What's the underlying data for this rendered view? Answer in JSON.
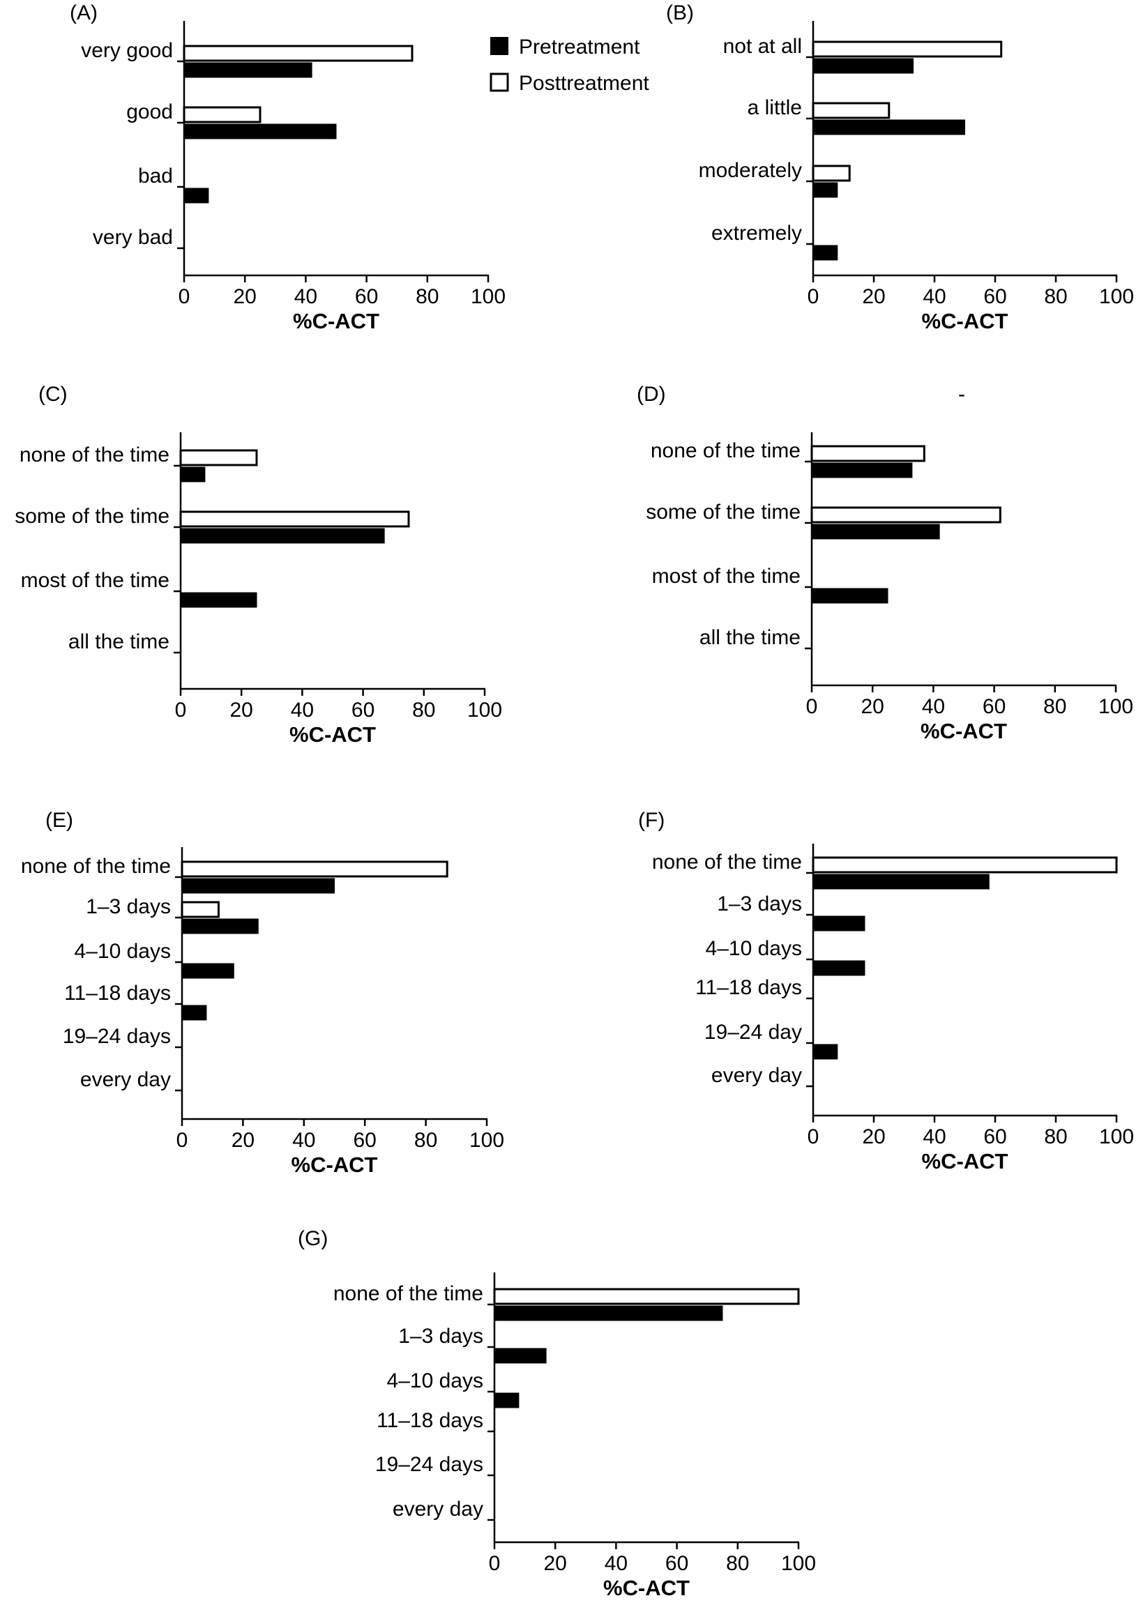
{
  "legend": {
    "pre_label": "Pretreatment",
    "post_label": "Posttreatment",
    "pre_color": "#000000",
    "post_color": "#ffffff"
  },
  "chart_data": [
    {
      "type": "bar",
      "panel": "(A)",
      "categories": [
        "very good",
        "good",
        "bad",
        "very bad"
      ],
      "series": [
        {
          "name": "Posttreatment",
          "values": [
            75,
            25,
            0,
            0
          ]
        },
        {
          "name": "Pretreatment",
          "values": [
            42,
            50,
            8,
            0
          ]
        }
      ],
      "xlabel": "%C-ACT",
      "xlim": [
        0,
        100
      ],
      "xticks": [
        "0",
        "20",
        "40",
        "60",
        "80",
        "100"
      ],
      "legend_position": "top-right"
    },
    {
      "type": "bar",
      "panel": "(B)",
      "categories": [
        "not at all",
        "a little",
        "moderately",
        "extremely"
      ],
      "series": [
        {
          "name": "Posttreatment",
          "values": [
            62,
            25,
            12,
            0
          ]
        },
        {
          "name": "Pretreatment",
          "values": [
            33,
            50,
            8,
            8
          ]
        }
      ],
      "xlabel": "%C-ACT",
      "xlim": [
        0,
        100
      ],
      "xticks": [
        "0",
        "20",
        "40",
        "60",
        "80",
        "100"
      ]
    },
    {
      "type": "bar",
      "panel": "(C)",
      "categories": [
        "none of the time",
        "some of the time",
        "most of the time",
        "all the time"
      ],
      "series": [
        {
          "name": "Posttreatment",
          "values": [
            25,
            75,
            0,
            0
          ]
        },
        {
          "name": "Pretreatment",
          "values": [
            8,
            67,
            25,
            0
          ]
        }
      ],
      "xlabel": "%C-ACT",
      "xlim": [
        0,
        100
      ],
      "xticks": [
        "0",
        "20",
        "40",
        "60",
        "80",
        "100"
      ]
    },
    {
      "type": "bar",
      "panel": "(D)",
      "categories": [
        "none of the time",
        "some of the time",
        "most of the time",
        "all the time"
      ],
      "series": [
        {
          "name": "Posttreatment",
          "values": [
            37,
            62,
            0,
            0
          ]
        },
        {
          "name": "Pretreatment",
          "values": [
            33,
            42,
            25,
            0
          ]
        }
      ],
      "xlabel": "%C-ACT",
      "xlim": [
        0,
        100
      ],
      "xticks": [
        "0",
        "20",
        "40",
        "60",
        "80",
        "100"
      ]
    },
    {
      "type": "bar",
      "panel": "(E)",
      "categories": [
        "none of the time",
        "1–3 days",
        "4–10 days",
        "11–18 days",
        "19–24 days",
        "every day"
      ],
      "series": [
        {
          "name": "Posttreatment",
          "values": [
            87,
            12,
            0,
            0,
            0,
            0
          ]
        },
        {
          "name": "Pretreatment",
          "values": [
            50,
            25,
            17,
            8,
            0,
            0
          ]
        }
      ],
      "xlabel": "%C-ACT",
      "xlim": [
        0,
        100
      ],
      "xticks": [
        "0",
        "20",
        "40",
        "60",
        "80",
        "100"
      ]
    },
    {
      "type": "bar",
      "panel": "(F)",
      "categories": [
        "none of the time",
        "1–3 days",
        "4–10 days",
        "11–18 days",
        "19–24 day",
        "every day"
      ],
      "series": [
        {
          "name": "Posttreatment",
          "values": [
            100,
            0,
            0,
            0,
            0,
            0
          ]
        },
        {
          "name": "Pretreatment",
          "values": [
            58,
            17,
            17,
            0,
            8,
            0
          ]
        }
      ],
      "xlabel": "%C-ACT",
      "xlim": [
        0,
        100
      ],
      "xticks": [
        "0",
        "20",
        "40",
        "60",
        "80",
        "100"
      ]
    },
    {
      "type": "bar",
      "panel": "(G)",
      "categories": [
        "none of the time",
        "1–3 days",
        "4–10 days",
        "11–18 days",
        "19–24 days",
        "every day"
      ],
      "series": [
        {
          "name": "Posttreatment",
          "values": [
            100,
            0,
            0,
            0,
            0,
            0
          ]
        },
        {
          "name": "Pretreatment",
          "values": [
            75,
            17,
            8,
            0,
            0,
            0
          ]
        }
      ],
      "xlabel": "%C-ACT",
      "xlim": [
        0,
        100
      ],
      "xticks": [
        "0",
        "20",
        "40",
        "60",
        "80",
        "100"
      ]
    }
  ]
}
